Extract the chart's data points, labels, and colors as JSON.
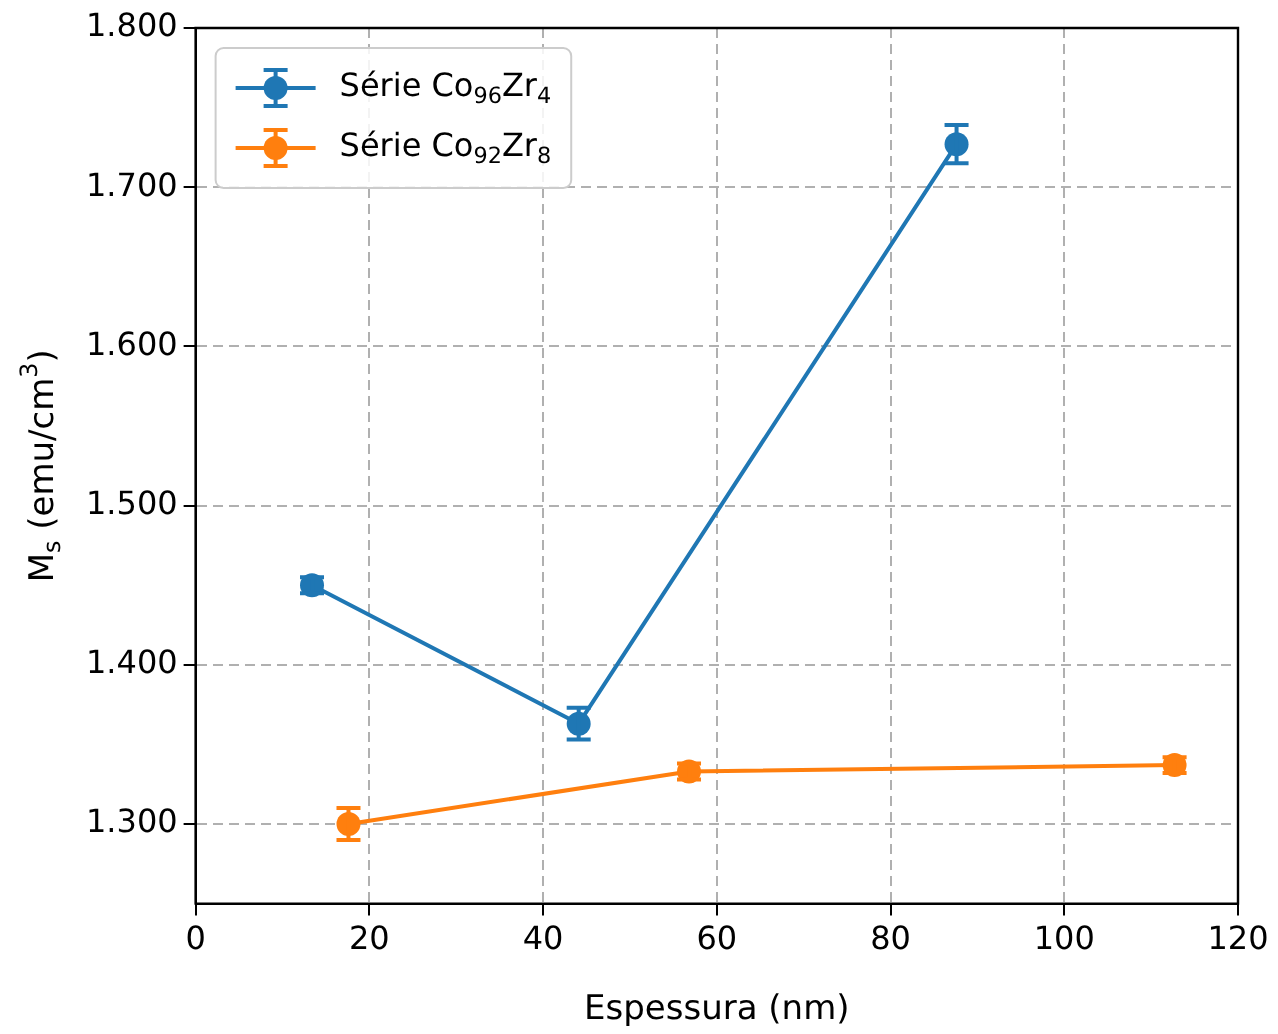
{
  "chart_data": {
    "type": "line",
    "xlabel": "Espessura (nm)",
    "ylabel": "M$_{s}$ (emu/cm$^{3}$)",
    "series": [
      {
        "name": "Série Co$_{96}$Zr$_{4}$",
        "color": "#1f77b4",
        "x": [
          13.4,
          44.1,
          87.6
        ],
        "values": [
          1.45,
          1.363,
          1.727
        ],
        "errors": [
          0.005,
          0.01,
          0.012
        ]
      },
      {
        "name": "Série Co$_{92}$Zr$_{8}$",
        "color": "#ff7f0e",
        "x": [
          17.6,
          56.8,
          112.7
        ],
        "values": [
          1.3,
          1.333,
          1.337
        ],
        "errors": [
          0.01,
          0.005,
          0.005
        ]
      }
    ],
    "xlim": [
      0,
      120
    ],
    "xticks": [
      0,
      20,
      40,
      60,
      80,
      100,
      120
    ],
    "ylim": [
      1.25,
      1.8
    ],
    "yticks": [
      {
        "value": 1.3,
        "label": "1.300"
      },
      {
        "value": 1.4,
        "label": "1.400"
      },
      {
        "value": 1.5,
        "label": "1.500"
      },
      {
        "value": 1.6,
        "label": "1.600"
      },
      {
        "value": 1.7,
        "label": "1.700"
      },
      {
        "value": 1.8,
        "label": "1.800"
      }
    ],
    "grid": true,
    "legend": "top left",
    "marker": "circle",
    "line_style": "solid"
  }
}
